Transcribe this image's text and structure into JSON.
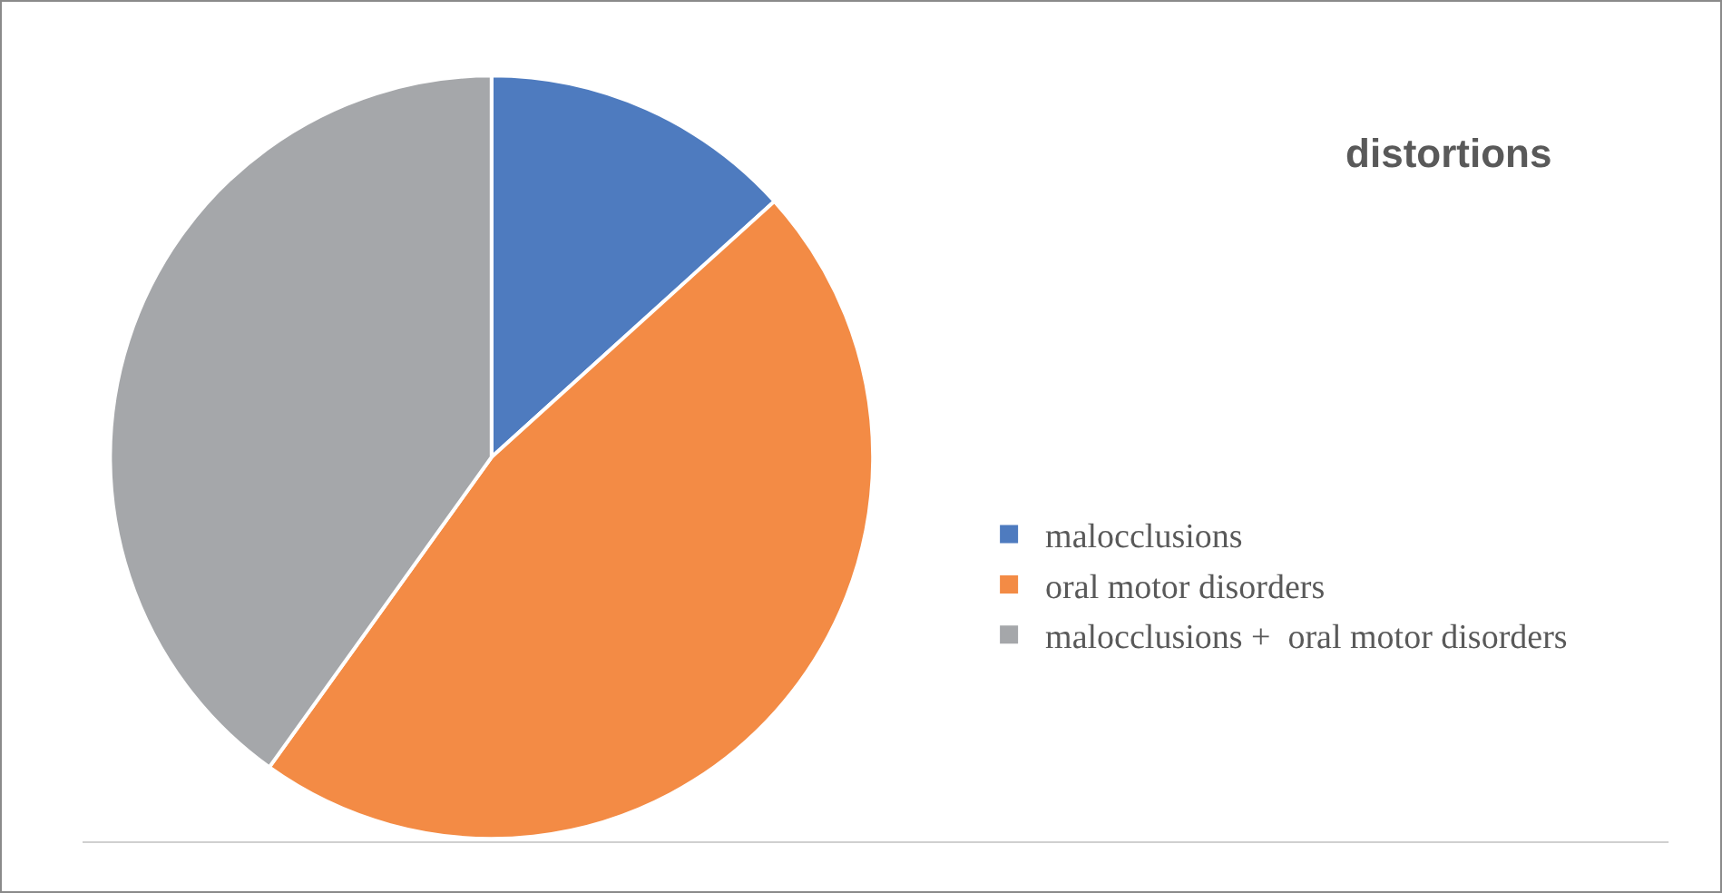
{
  "chart_data": {
    "type": "pie",
    "title": "distortions",
    "categories": [
      "malocclusions",
      "oral motor disorders",
      "malocclusions +  oral motor disorders"
    ],
    "values": [
      13.3,
      46.6,
      40.1
    ],
    "colors": [
      "#4e7bbf",
      "#f38b45",
      "#a5a7aa"
    ],
    "legend": "right"
  }
}
